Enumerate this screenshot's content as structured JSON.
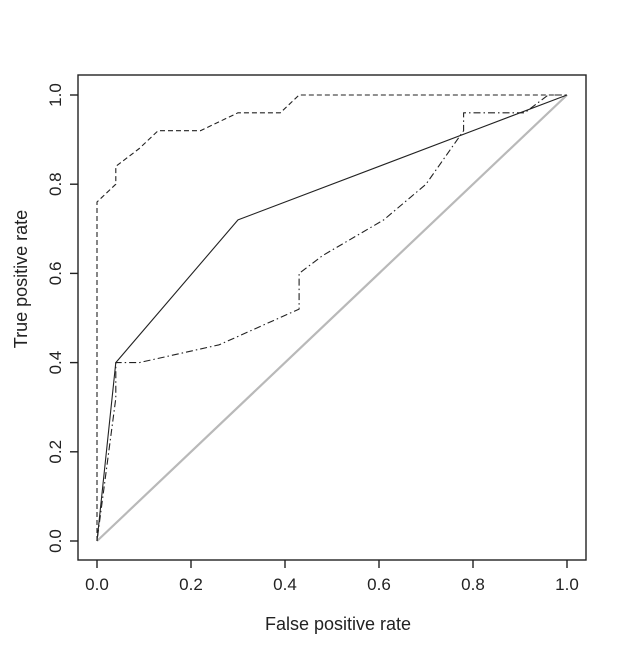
{
  "chart_data": {
    "type": "line",
    "title": "",
    "xlabel": "False positive rate",
    "ylabel": "True positive rate",
    "xlim": [
      0,
      1
    ],
    "ylim": [
      0,
      1
    ],
    "grid": false,
    "legend": "none",
    "x_ticks": [
      "0.0",
      "0.2",
      "0.4",
      "0.6",
      "0.8",
      "1.0"
    ],
    "y_ticks": [
      "0.0",
      "0.2",
      "0.4",
      "0.6",
      "0.8",
      "1.0"
    ],
    "x_tick_values": [
      0,
      0.2,
      0.4,
      0.6,
      0.8,
      1.0
    ],
    "y_tick_values": [
      0,
      0.2,
      0.4,
      0.6,
      0.8,
      1.0
    ],
    "series": [
      {
        "style": "solid",
        "x": [
          0,
          0.04,
          0.3,
          1.0
        ],
        "y": [
          0,
          0.4,
          0.72,
          1.0
        ]
      },
      {
        "style": "dashed",
        "x": [
          0,
          0,
          0,
          0.04,
          0.04,
          0.09,
          0.13,
          0.22,
          0.3,
          0.39,
          0.43,
          0.43,
          0.96,
          1.0
        ],
        "y": [
          0,
          0.28,
          0.76,
          0.8,
          0.84,
          0.88,
          0.92,
          0.92,
          0.96,
          0.96,
          1.0,
          1.0,
          1.0,
          1.0
        ]
      },
      {
        "style": "dotdash",
        "x": [
          0,
          0.04,
          0.04,
          0.09,
          0.26,
          0.43,
          0.43,
          0.48,
          0.61,
          0.7,
          0.78,
          0.78,
          0.91,
          0.96,
          1.0
        ],
        "y": [
          0,
          0.32,
          0.4,
          0.4,
          0.44,
          0.52,
          0.6,
          0.64,
          0.72,
          0.8,
          0.92,
          0.96,
          0.96,
          1.0,
          1.0
        ]
      },
      {
        "style": "diagonal",
        "color": "#b9b9b9",
        "x": [
          0,
          1
        ],
        "y": [
          0,
          1
        ]
      }
    ]
  }
}
